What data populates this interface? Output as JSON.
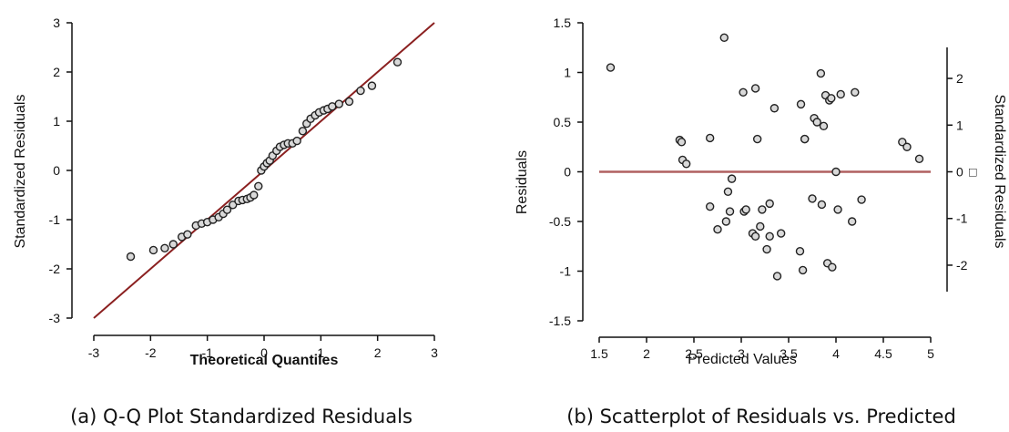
{
  "chart_data": [
    {
      "type": "scatter",
      "caption": "(a) Q-Q Plot Standardized Residuals",
      "xlabel": "Theoretical Quantiles",
      "ylabel": "Standardized Residuals",
      "xlim": [
        -3,
        3
      ],
      "ylim": [
        -3,
        3
      ],
      "xticks": [
        "-3",
        "-2",
        "-1",
        "0",
        "1",
        "2",
        "3"
      ],
      "yticks": [
        "-3",
        "-2",
        "-1",
        "0",
        "1",
        "2",
        "3"
      ],
      "reference_line": {
        "from": [
          -3,
          -3
        ],
        "to": [
          3,
          3
        ],
        "color": "#8b2020"
      },
      "points": [
        [
          -2.35,
          -1.75
        ],
        [
          -1.95,
          -1.62
        ],
        [
          -1.75,
          -1.58
        ],
        [
          -1.6,
          -1.5
        ],
        [
          -1.45,
          -1.35
        ],
        [
          -1.35,
          -1.3
        ],
        [
          -1.2,
          -1.12
        ],
        [
          -1.1,
          -1.08
        ],
        [
          -1.0,
          -1.05
        ],
        [
          -0.9,
          -1.0
        ],
        [
          -0.8,
          -0.95
        ],
        [
          -0.72,
          -0.88
        ],
        [
          -0.65,
          -0.8
        ],
        [
          -0.55,
          -0.7
        ],
        [
          -0.45,
          -0.62
        ],
        [
          -0.38,
          -0.6
        ],
        [
          -0.3,
          -0.58
        ],
        [
          -0.24,
          -0.55
        ],
        [
          -0.18,
          -0.5
        ],
        [
          -0.1,
          -0.32
        ],
        [
          -0.05,
          0.0
        ],
        [
          0.0,
          0.08
        ],
        [
          0.05,
          0.15
        ],
        [
          0.1,
          0.2
        ],
        [
          0.15,
          0.3
        ],
        [
          0.22,
          0.4
        ],
        [
          0.28,
          0.48
        ],
        [
          0.35,
          0.52
        ],
        [
          0.42,
          0.55
        ],
        [
          0.5,
          0.55
        ],
        [
          0.58,
          0.6
        ],
        [
          0.68,
          0.8
        ],
        [
          0.75,
          0.95
        ],
        [
          0.82,
          1.05
        ],
        [
          0.9,
          1.12
        ],
        [
          0.97,
          1.18
        ],
        [
          1.05,
          1.22
        ],
        [
          1.12,
          1.25
        ],
        [
          1.2,
          1.3
        ],
        [
          1.32,
          1.35
        ],
        [
          1.5,
          1.4
        ],
        [
          1.7,
          1.62
        ],
        [
          1.9,
          1.72
        ],
        [
          2.35,
          2.2
        ]
      ]
    },
    {
      "type": "scatter",
      "caption": "(b) Scatterplot of Residuals vs. Predicted",
      "xlabel": "Predicted Values",
      "ylabel": "Residuals",
      "ylabel_right": "Standardized Residuals",
      "xlim": [
        1.5,
        5
      ],
      "ylim": [
        -1.5,
        1.5
      ],
      "xticks": [
        "1.5",
        "2",
        "2.5",
        "3",
        "3.5",
        "4",
        "4.5",
        "5"
      ],
      "yticks": [
        "-1.5",
        "-1",
        "-0.5",
        "0",
        "0.5",
        "1",
        "1.5"
      ],
      "right_ticks": [
        {
          "value": 0.94,
          "label": "2"
        },
        {
          "value": 0.47,
          "label": "1"
        },
        {
          "value": 0.0,
          "label": "0"
        },
        {
          "value": -0.47,
          "label": "-1"
        },
        {
          "value": -0.94,
          "label": "-2"
        }
      ],
      "right_tick_symbol": "□",
      "reference_line": {
        "y": 0,
        "color": "#b06060"
      },
      "points": [
        [
          1.62,
          1.05
        ],
        [
          2.35,
          0.32
        ],
        [
          2.37,
          0.3
        ],
        [
          2.38,
          0.12
        ],
        [
          2.42,
          0.08
        ],
        [
          2.67,
          0.34
        ],
        [
          2.67,
          -0.35
        ],
        [
          2.75,
          -0.58
        ],
        [
          2.82,
          1.35
        ],
        [
          2.84,
          -0.5
        ],
        [
          2.86,
          -0.2
        ],
        [
          2.88,
          -0.4
        ],
        [
          2.9,
          -0.07
        ],
        [
          3.02,
          0.8
        ],
        [
          3.03,
          -0.4
        ],
        [
          3.05,
          -0.38
        ],
        [
          3.12,
          -0.62
        ],
        [
          3.15,
          0.84
        ],
        [
          3.15,
          -0.65
        ],
        [
          3.17,
          0.33
        ],
        [
          3.2,
          -0.55
        ],
        [
          3.22,
          -0.38
        ],
        [
          3.27,
          -0.78
        ],
        [
          3.3,
          -0.65
        ],
        [
          3.3,
          -0.32
        ],
        [
          3.35,
          0.64
        ],
        [
          3.38,
          -1.05
        ],
        [
          3.42,
          -0.62
        ],
        [
          3.62,
          -0.8
        ],
        [
          3.63,
          0.68
        ],
        [
          3.65,
          -0.99
        ],
        [
          3.67,
          0.33
        ],
        [
          3.67,
          0.33
        ],
        [
          3.75,
          -0.27
        ],
        [
          3.77,
          0.54
        ],
        [
          3.8,
          0.5
        ],
        [
          3.84,
          0.99
        ],
        [
          3.85,
          -0.33
        ],
        [
          3.87,
          0.46
        ],
        [
          3.89,
          0.77
        ],
        [
          3.91,
          -0.92
        ],
        [
          3.93,
          0.72
        ],
        [
          3.95,
          0.74
        ],
        [
          3.96,
          -0.96
        ],
        [
          4.0,
          0.0
        ],
        [
          4.02,
          -0.38
        ],
        [
          4.05,
          0.78
        ],
        [
          4.17,
          -0.5
        ],
        [
          4.2,
          0.8
        ],
        [
          4.27,
          -0.28
        ],
        [
          4.7,
          0.3
        ],
        [
          4.75,
          0.25
        ],
        [
          4.88,
          0.13
        ]
      ]
    }
  ]
}
